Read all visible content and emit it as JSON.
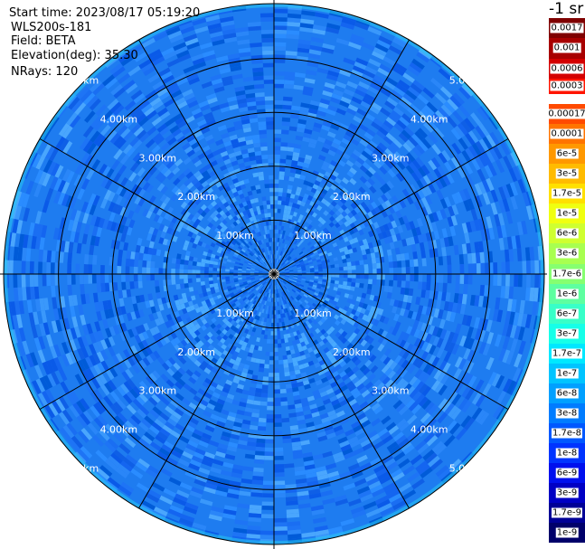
{
  "header": {
    "start_time": "Start time: 2023/08/17 05:19:20",
    "instrument": "WLS200s-181",
    "field": "Field: BETA",
    "elevation": "Elevation(deg): 35.30",
    "nrays": "NRays: 120"
  },
  "ppi": {
    "ring_labels": [
      "1.00km",
      "2.00km",
      "3.00km",
      "4.00km",
      "5.00km"
    ],
    "spoke_count": 12
  },
  "colorbar": {
    "unit": "-1 sr",
    "levels": [
      {
        "label": "0.0017",
        "color": "#7f0000"
      },
      {
        "label": "0.001",
        "color": "#a80000"
      },
      {
        "label": "0.0006",
        "color": "#d40000"
      },
      {
        "label": "0.0003",
        "color": "#ff1400"
      },
      {
        "label": "0.00017",
        "color": "#ff4a00"
      },
      {
        "label": "0.0001",
        "color": "#ff7400"
      },
      {
        "label": "6e-5",
        "color": "#ff9800"
      },
      {
        "label": "3e-5",
        "color": "#ffbb00"
      },
      {
        "label": "1.7e-5",
        "color": "#ffe000"
      },
      {
        "label": "1e-5",
        "color": "#f0ff10"
      },
      {
        "label": "6e-6",
        "color": "#cfff30"
      },
      {
        "label": "3e-6",
        "color": "#a8ff50"
      },
      {
        "label": "1.7e-6",
        "color": "#86ff70"
      },
      {
        "label": "1e-6",
        "color": "#5effa0"
      },
      {
        "label": "6e-7",
        "color": "#38ffc8"
      },
      {
        "label": "3e-7",
        "color": "#16ffe8"
      },
      {
        "label": "1.7e-7",
        "color": "#00e8ff"
      },
      {
        "label": "1e-7",
        "color": "#00c4ff"
      },
      {
        "label": "6e-8",
        "color": "#00a0ff"
      },
      {
        "label": "3e-8",
        "color": "#007cff"
      },
      {
        "label": "1.7e-8",
        "color": "#0058ff"
      },
      {
        "label": "1e-8",
        "color": "#0034ff"
      },
      {
        "label": "6e-9",
        "color": "#0010ee"
      },
      {
        "label": "3e-9",
        "color": "#0000c4"
      },
      {
        "label": "1.7e-9",
        "color": "#000096"
      },
      {
        "label": "1e-9",
        "color": "#00006a"
      }
    ]
  },
  "colors": {
    "field_base": "#1e7cf0",
    "grid_line": "#000000"
  }
}
